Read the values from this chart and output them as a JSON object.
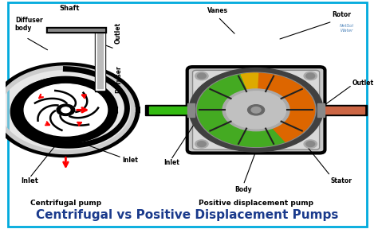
{
  "title": "Centrifugal vs Positive Displacement Pumps",
  "title_color": "#1a3a8c",
  "title_fontsize": 11,
  "background_color": "#ffffff",
  "border_color": "#00aadd",
  "left_label": "Centrifugal pump",
  "right_label": "Positive displacement pump"
}
